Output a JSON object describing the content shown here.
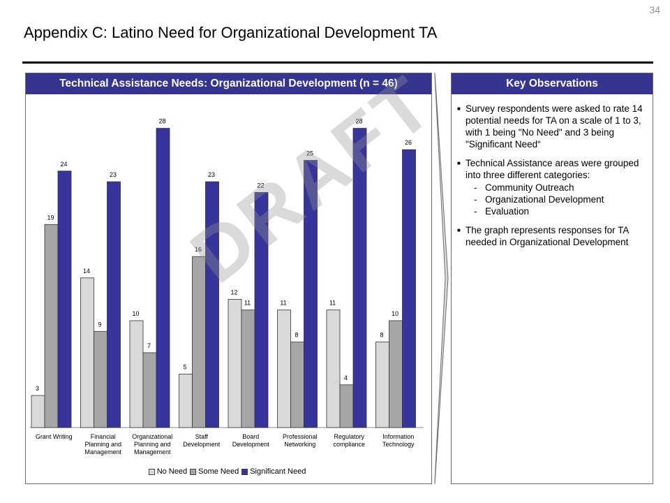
{
  "page_number": "34",
  "page_title": "Appendix C: Latino Need for Organizational Development TA",
  "chart_panel": {
    "header": "Technical Assistance Needs: Organizational Development (n = 46)"
  },
  "observations_panel": {
    "header": "Key Observations",
    "bullets": [
      "Survey respondents were asked to rate 14 potential needs for TA on a scale of 1 to 3, with 1 being \"No Need\" and 3 being \"Significant Need“",
      "Technical Assistance areas were grouped into three different categories:",
      "The graph represents responses for TA needed in Organizational Development"
    ],
    "sub_items": [
      "Community Outreach",
      "Organizational Development",
      "Evaluation"
    ]
  },
  "watermark": "DRAFT",
  "colors": {
    "header_bg": "#35358f",
    "no_need": "#d9d9d9",
    "some_need": "#a6a6a6",
    "significant_need": "#35359c"
  },
  "chart_data": {
    "type": "bar",
    "title": "Technical Assistance Needs: Organizational Development (n = 46)",
    "categories": [
      [
        "Grant Writing"
      ],
      [
        "Financial",
        "Planning and",
        "Management"
      ],
      [
        "Organizational",
        "Planning and",
        "Management"
      ],
      [
        "Staff",
        "Development"
      ],
      [
        "Board",
        "Development"
      ],
      [
        "Professional",
        "Networking"
      ],
      [
        "Regulatory",
        "compliance"
      ],
      [
        "Information",
        "Technology"
      ]
    ],
    "series": [
      {
        "name": "No Need",
        "values": [
          3,
          14,
          10,
          5,
          12,
          11,
          11,
          8
        ]
      },
      {
        "name": "Some Need",
        "values": [
          19,
          9,
          7,
          16,
          11,
          8,
          4,
          10
        ]
      },
      {
        "name": "Significant Need",
        "values": [
          24,
          23,
          28,
          23,
          22,
          25,
          28,
          26
        ]
      }
    ],
    "legend_position": "bottom",
    "grid": false
  }
}
